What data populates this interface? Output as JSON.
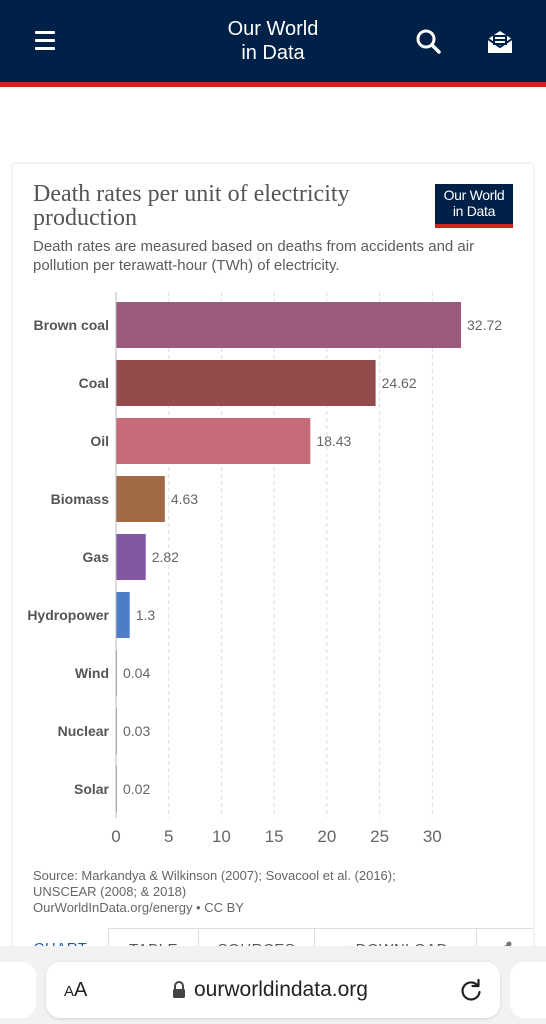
{
  "header": {
    "brand_line1": "Our World",
    "brand_line2": "in Data",
    "menu_icon": "hamburger-menu-icon",
    "search_icon": "search-icon",
    "subscribe_icon": "newsletter-envelope-icon",
    "bg_color": "#002147",
    "accent_color": "#ce261e"
  },
  "card": {
    "title": "Death rates per unit of electricity production",
    "subtitle": "Death rates are measured based on deaths from accidents and air pollution per terawatt-hour (TWh) of electricity.",
    "logo_line1": "Our World",
    "logo_line2": "in Data",
    "source_line1": "Source: Markandya & Wilkinson (2007); Sovacool et al. (2016);",
    "source_line2": "UNSCEAR (2008; & 2018)",
    "source_line3": "OurWorldInData.org/energy • CC BY",
    "tabs": [
      {
        "label": "CHART"
      },
      {
        "label": "TABLE"
      },
      {
        "label": "SOURCES"
      },
      {
        "label": "DOWNLOAD"
      }
    ],
    "share_icon": "share-icon",
    "download_icon": "download-arrow-icon"
  },
  "chart_data": {
    "type": "bar",
    "orientation": "horizontal",
    "title": "Death rates per unit of electricity production",
    "xlabel": "",
    "ylabel": "",
    "xlim": [
      0,
      32.72
    ],
    "xticks": [
      0,
      5,
      10,
      15,
      20,
      25,
      30
    ],
    "grid": true,
    "categories": [
      "Brown coal",
      "Coal",
      "Oil",
      "Biomass",
      "Gas",
      "Hydropower",
      "Wind",
      "Nuclear",
      "Solar"
    ],
    "values": [
      32.72,
      24.62,
      18.43,
      4.63,
      2.82,
      1.3,
      0.04,
      0.03,
      0.02
    ],
    "value_labels": [
      "32.72",
      "24.62",
      "18.43",
      "4.63",
      "2.82",
      "1.3",
      "0.04",
      "0.03",
      "0.02"
    ],
    "colors": [
      "#9a5b7e",
      "#944b4b",
      "#c66b7a",
      "#a06a47",
      "#8158a1",
      "#4f7cc7",
      "#999999",
      "#999999",
      "#999999"
    ]
  },
  "browser": {
    "text_size_label_small": "A",
    "text_size_label_large": "A",
    "url": "ourworldindata.org",
    "lock_icon": "lock-icon",
    "reload_icon": "reload-icon"
  }
}
